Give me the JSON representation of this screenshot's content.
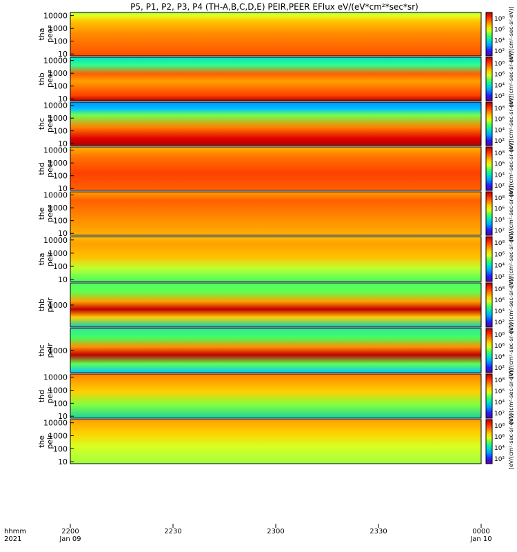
{
  "title": "P5, P1, P2, P3, P4 (TH-A,B,C,D,E) PEIR,PEER EFlux eV/(eV*cm²*sec*sr)",
  "time_axis": {
    "row1_label": "hhmm",
    "row2_label": "2021",
    "ticks": [
      "2200",
      "2230",
      "2300",
      "2330",
      "0000"
    ],
    "date_labels": {
      "start": "Jan 09",
      "end": "Jan 10"
    },
    "range": [
      "2021-01-09 22:00",
      "2021-01-10 00:00"
    ]
  },
  "colorbar": {
    "label": "[eV/(cm²-sec-sr-eV)]",
    "colors": [
      "#6000a0",
      "#2020ff",
      "#00a0ff",
      "#00e8c0",
      "#50ff50",
      "#d8ff20",
      "#ffd000",
      "#ff8000",
      "#ff2000",
      "#b00000"
    ]
  },
  "chart_data": [
    {
      "type": "heatmap",
      "panel": "tha peer",
      "ylabel": "tha\npeer",
      "yscale": "log",
      "yticks": [
        "10",
        "100",
        "1000",
        "10000"
      ],
      "colorbar_ticks": [
        "10²",
        "10⁴",
        "10⁶",
        "10⁸"
      ]
    },
    {
      "type": "heatmap",
      "panel": "thb peer",
      "ylabel": "thb\npeer",
      "yscale": "log",
      "yticks": [
        "10",
        "100",
        "1000",
        "10000"
      ],
      "colorbar_ticks": [
        "10²",
        "10⁴",
        "10⁶",
        "10⁸"
      ]
    },
    {
      "type": "heatmap",
      "panel": "thc peer",
      "ylabel": "thc\npeer",
      "yscale": "log",
      "yticks": [
        "10",
        "100",
        "1000",
        "10000"
      ],
      "colorbar_ticks": [
        "10²",
        "10⁴",
        "10⁶",
        "10⁸"
      ]
    },
    {
      "type": "heatmap",
      "panel": "thd peer",
      "ylabel": "thd\npeer",
      "yscale": "log",
      "yticks": [
        "10",
        "100",
        "1000",
        "10000"
      ],
      "colorbar_ticks": [
        "10²",
        "10⁴",
        "10⁶",
        "10⁸"
      ]
    },
    {
      "type": "heatmap",
      "panel": "the peer",
      "ylabel": "the\npeer",
      "yscale": "log",
      "yticks": [
        "10",
        "100",
        "1000",
        "10000"
      ],
      "colorbar_ticks": [
        "10²",
        "10⁴",
        "10⁶",
        "10⁸"
      ]
    },
    {
      "type": "heatmap",
      "panel": "tha peir",
      "ylabel": "tha\npeir",
      "yscale": "log",
      "yticks": [
        "10",
        "100",
        "1000",
        "10000"
      ],
      "colorbar_ticks": [
        "10²",
        "10⁴",
        "10⁶",
        "10⁸"
      ]
    },
    {
      "type": "heatmap",
      "panel": "thb peir",
      "ylabel": "thb\npeir",
      "yscale": "log",
      "yticks": [
        "1000"
      ],
      "colorbar_ticks": [
        "10²",
        "10⁴",
        "10⁶",
        "10⁸"
      ]
    },
    {
      "type": "heatmap",
      "panel": "thc peir",
      "ylabel": "thc\npeir",
      "yscale": "log",
      "yticks": [
        "1000"
      ],
      "colorbar_ticks": [
        "10²",
        "10⁴",
        "10⁶",
        "10⁸"
      ]
    },
    {
      "type": "heatmap",
      "panel": "thd peir",
      "ylabel": "thd\npeir",
      "yscale": "log",
      "yticks": [
        "10",
        "100",
        "1000",
        "10000"
      ],
      "colorbar_ticks": [
        "10²",
        "10⁴",
        "10⁶",
        "10⁸"
      ]
    },
    {
      "type": "heatmap",
      "panel": "the peir",
      "ylabel": "the\npeir",
      "yscale": "log",
      "yticks": [
        "10",
        "100",
        "1000",
        "10000"
      ],
      "colorbar_ticks": [
        "10²",
        "10⁴",
        "10⁶",
        "10⁸"
      ]
    }
  ]
}
